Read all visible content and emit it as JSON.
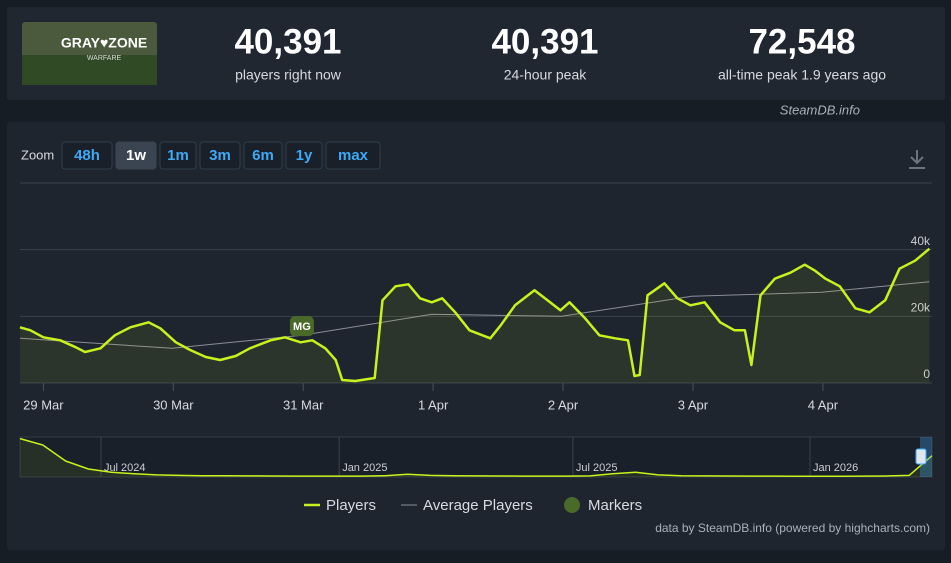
{
  "header": {
    "game_logo": {
      "title": "GRAY♥ZONE",
      "subtitle": "WARFARE"
    },
    "stats": [
      {
        "value": "40,391",
        "label": "players right now"
      },
      {
        "value": "40,391",
        "label": "24-hour peak"
      },
      {
        "value": "72,548",
        "label": "all-time peak 1.9 years ago"
      }
    ],
    "source": "SteamDB.info"
  },
  "zoom": {
    "label": "Zoom",
    "options": [
      "48h",
      "1w",
      "1m",
      "3m",
      "6m",
      "1y",
      "max"
    ],
    "active": 1
  },
  "chart_data": [
    {
      "type": "line",
      "grid": true,
      "xlim": [
        -0.18,
        6.84
      ],
      "ylim": [
        0,
        60000
      ],
      "xticks": [
        {
          "value": 0,
          "label": "29 Mar"
        },
        {
          "value": 1,
          "label": "30 Mar"
        },
        {
          "value": 2,
          "label": "31 Mar"
        },
        {
          "value": 3,
          "label": "1 Apr"
        },
        {
          "value": 4,
          "label": "2 Apr"
        },
        {
          "value": 5,
          "label": "3 Apr"
        },
        {
          "value": 6,
          "label": "4 Apr"
        }
      ],
      "yticks": [
        0,
        {
          "value": 20000,
          "label": "20k"
        },
        {
          "value": 40000,
          "label": "40k"
        }
      ],
      "series": [
        {
          "name": "Players",
          "color": "#c8f21d",
          "x": [
            -0.18,
            -0.1,
            0,
            0.13,
            0.25,
            0.32,
            0.44,
            0.55,
            0.67,
            0.81,
            0.9,
            1.02,
            1.13,
            1.25,
            1.36,
            1.48,
            1.59,
            1.75,
            1.86,
            1.98,
            2.07,
            2.17,
            2.25,
            2.3,
            2.4,
            2.55,
            2.61,
            2.71,
            2.81,
            2.9,
            2.99,
            3.07,
            3.17,
            3.28,
            3.44,
            3.52,
            3.63,
            3.78,
            3.88,
            3.98,
            4.05,
            4.17,
            4.28,
            4.4,
            4.5,
            4.55,
            4.59,
            4.65,
            4.78,
            4.88,
            4.98,
            5.09,
            5.21,
            5.32,
            5.4,
            5.45,
            5.52,
            5.63,
            5.75,
            5.86,
            5.94,
            6.02,
            6.13,
            6.25,
            6.36,
            6.48,
            6.59,
            6.71,
            6.82
          ],
          "values": [
            16700,
            15800,
            13700,
            12800,
            10700,
            9300,
            10400,
            14300,
            16700,
            18200,
            16400,
            12200,
            9900,
            7800,
            6900,
            8100,
            10400,
            12800,
            13700,
            12200,
            12800,
            10400,
            6900,
            900,
            600,
            1500,
            24800,
            29000,
            29600,
            25400,
            24200,
            25400,
            21200,
            15800,
            13400,
            17300,
            23300,
            27800,
            24800,
            21800,
            24200,
            19400,
            14300,
            13400,
            12800,
            2100,
            2400,
            26300,
            29900,
            25400,
            23300,
            24200,
            18200,
            15800,
            15800,
            5400,
            26300,
            31300,
            33100,
            35500,
            33700,
            31300,
            29000,
            22400,
            21200,
            24800,
            34300,
            36700,
            40300
          ]
        },
        {
          "name": "Average Players",
          "color": "#8a8f96",
          "x": [
            -0.18,
            0.99,
            1.99,
            2.99,
            3.99,
            4.99,
            5.99,
            6.82
          ],
          "values": [
            13400,
            10400,
            14300,
            20600,
            20000,
            26000,
            27200,
            30400
          ]
        }
      ],
      "markers_name": "Markers",
      "marker_color": "#4a6a2a",
      "markers": [
        {
          "label": "MG",
          "x": 1.99
        }
      ],
      "credit": "data by SteamDB.info (powered by highcharts.com)"
    },
    {
      "type": "line",
      "color": "#c8f21d",
      "xlim": [
        0,
        40
      ],
      "ylim": [
        0,
        75000
      ],
      "xticks": [
        {
          "value": 3.55,
          "label": "Jul 2024"
        },
        {
          "value": 14,
          "label": "Jan 2025"
        },
        {
          "value": 24.25,
          "label": "Jul 2025"
        },
        {
          "value": 34.65,
          "label": "Jan 2026"
        }
      ],
      "values": [
        72000,
        60000,
        30000,
        15000,
        9000,
        6000,
        4000,
        3000,
        2500,
        2200,
        2000,
        1800,
        1700,
        1700,
        1600,
        1600,
        2500,
        5000,
        3000,
        2200,
        2000,
        1800,
        1700,
        1600,
        1600,
        2000,
        6000,
        9000,
        4000,
        2500,
        2000,
        1800,
        1700,
        1600,
        1500,
        1500,
        1500,
        1600,
        1800,
        3000,
        40000
      ]
    }
  ]
}
